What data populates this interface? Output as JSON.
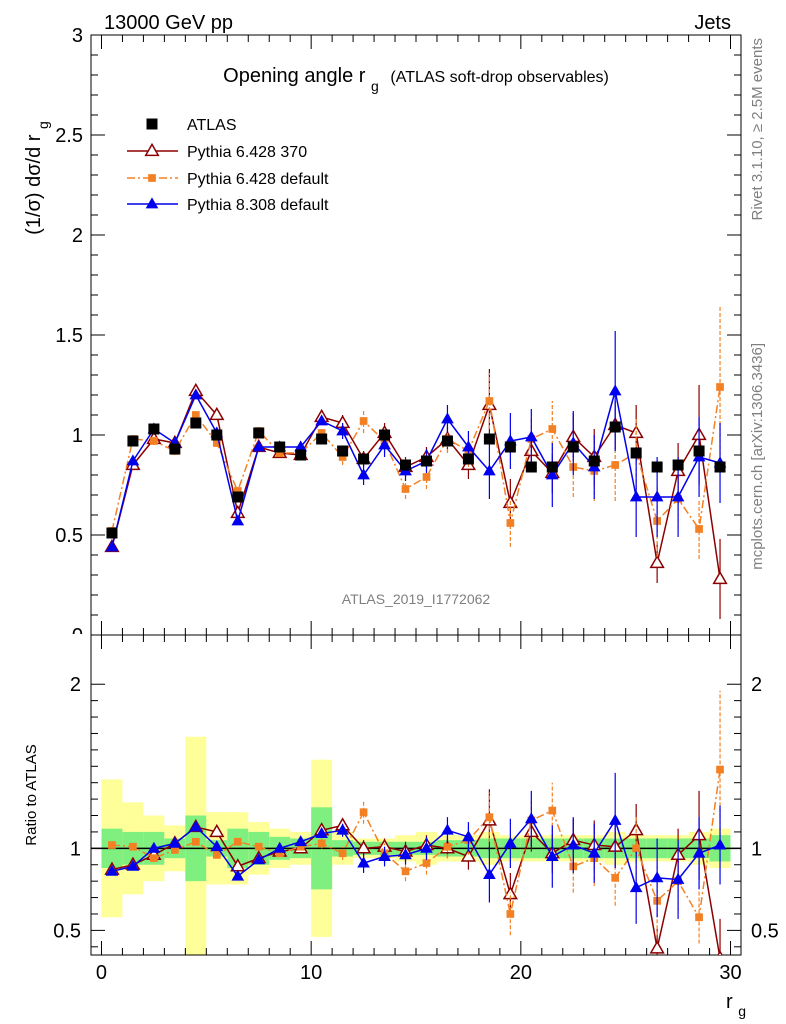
{
  "header": {
    "energy": "13000 GeV pp",
    "process": "Jets",
    "rivet_info": "Rivet 3.1.10, ≥ 2.5M events",
    "mcplots_info": "mcplots.cern.ch [arXiv:1306.3436]"
  },
  "chart_data": [
    {
      "type": "scatter",
      "panel": "main",
      "title_main": "Opening angle r",
      "title_sub": "g",
      "title_rest": "(ATLAS soft-drop observables)",
      "ylabel": "(1/σ) dσ/d r",
      "ylabel_sub": "g",
      "analysis_id": "ATLAS_2019_I1772062",
      "xlim": [
        -0.5,
        30.5
      ],
      "ylim": [
        0,
        3
      ],
      "y_ticks": [
        "0.5",
        "1",
        "1.5",
        "2",
        "2.5",
        "3"
      ],
      "y_tick_values": [
        0.5,
        1,
        1.5,
        2,
        2.5,
        3
      ],
      "x": [
        0.5,
        1.5,
        2.5,
        3.5,
        4.5,
        5.5,
        6.5,
        7.5,
        8.5,
        9.5,
        10.5,
        11.5,
        12.5,
        13.5,
        14.5,
        15.5,
        16.5,
        17.5,
        18.5,
        19.5,
        20.5,
        21.5,
        22.5,
        23.5,
        24.5,
        25.5,
        26.5,
        27.5,
        28.5,
        29.5
      ],
      "series": [
        {
          "name": "ATLAS",
          "color": "#000000",
          "marker": "filled-square",
          "values": [
            0.51,
            0.97,
            1.03,
            0.93,
            1.06,
            1.0,
            0.69,
            1.01,
            0.94,
            0.9,
            0.98,
            0.92,
            0.88,
            1.0,
            0.85,
            0.87,
            0.97,
            0.88,
            0.98,
            0.94,
            0.84,
            0.84,
            0.94,
            0.87,
            1.04,
            0.91,
            0.84,
            0.85,
            0.92,
            0.84
          ]
        },
        {
          "name": "Pythia 6.428 370",
          "color": "#8b0000",
          "marker": "open-triangle",
          "values": [
            0.44,
            0.85,
            0.98,
            0.96,
            1.22,
            1.1,
            0.61,
            0.94,
            0.91,
            0.9,
            1.09,
            1.06,
            0.88,
            1.01,
            0.84,
            0.89,
            0.98,
            0.85,
            1.15,
            0.66,
            0.92,
            0.81,
            0.99,
            0.89,
            1.05,
            1.01,
            0.36,
            0.82,
            1.0,
            0.28
          ],
          "errors": [
            0.02,
            0.02,
            0.02,
            0.02,
            0.02,
            0.02,
            0.02,
            0.02,
            0.02,
            0.02,
            0.02,
            0.04,
            0.04,
            0.05,
            0.05,
            0.05,
            0.06,
            0.07,
            0.18,
            0.12,
            0.1,
            0.1,
            0.12,
            0.14,
            0.12,
            0.14,
            0.1,
            0.14,
            0.25,
            0.2
          ]
        },
        {
          "name": "Pythia 6.428 default",
          "color": "#f48024",
          "marker": "filled-small-square",
          "values": [
            0.52,
            0.98,
            0.97,
            0.92,
            1.1,
            0.96,
            0.72,
            1.02,
            0.91,
            0.91,
            1.01,
            0.89,
            1.07,
            0.97,
            0.73,
            0.79,
            0.98,
            0.92,
            1.17,
            0.56,
            0.98,
            1.03,
            0.84,
            0.82,
            0.85,
            0.91,
            0.57,
            0.68,
            0.53,
            1.24
          ],
          "errors": [
            0.02,
            0.02,
            0.02,
            0.02,
            0.02,
            0.02,
            0.02,
            0.02,
            0.02,
            0.02,
            0.03,
            0.04,
            0.06,
            0.06,
            0.05,
            0.06,
            0.07,
            0.08,
            0.14,
            0.12,
            0.1,
            0.14,
            0.15,
            0.15,
            0.18,
            0.18,
            0.18,
            0.15,
            0.15,
            0.4
          ]
        },
        {
          "name": "Pythia 8.308 default",
          "color": "#0000ee",
          "marker": "filled-triangle",
          "values": [
            0.44,
            0.87,
            1.03,
            0.96,
            1.2,
            1.01,
            0.57,
            0.94,
            0.94,
            0.94,
            1.07,
            1.02,
            0.8,
            0.95,
            0.82,
            0.87,
            1.08,
            0.94,
            0.82,
            0.97,
            0.99,
            0.8,
            0.96,
            0.84,
            1.22,
            0.69,
            0.69,
            0.69,
            0.89,
            0.86
          ],
          "errors": [
            0.02,
            0.02,
            0.02,
            0.02,
            0.02,
            0.02,
            0.02,
            0.02,
            0.02,
            0.02,
            0.02,
            0.04,
            0.05,
            0.06,
            0.05,
            0.06,
            0.07,
            0.08,
            0.14,
            0.14,
            0.14,
            0.16,
            0.16,
            0.16,
            0.3,
            0.2,
            0.2,
            0.2,
            0.2,
            0.2
          ]
        }
      ],
      "legend_position": "top-left"
    },
    {
      "type": "scatter",
      "panel": "ratio",
      "ylabel": "Ratio to ATLAS",
      "xlabel": "r",
      "xlabel_sub": "g",
      "xlim": [
        -0.5,
        30.5
      ],
      "ylim": [
        0.35,
        2.3
      ],
      "x_ticks": [
        "0",
        "10",
        "20",
        "30"
      ],
      "x_tick_values": [
        0,
        10,
        20,
        30
      ],
      "y_ticks": [
        "0.5",
        "1",
        "2"
      ],
      "y_tick_values": [
        0.5,
        1,
        2
      ],
      "reference_line": 1,
      "band_stat_color": "#7ff07f",
      "band_total_color": "#ffff99",
      "band_stat_halfwidth": [
        0.12,
        0.1,
        0.1,
        0.06,
        0.2,
        0.05,
        0.12,
        0.1,
        0.07,
        0.06,
        0.25,
        0.05,
        0.04,
        0.04,
        0.04,
        0.04,
        0.05,
        0.05,
        0.06,
        0.06,
        0.06,
        0.06,
        0.06,
        0.06,
        0.06,
        0.06,
        0.06,
        0.06,
        0.06,
        0.08
      ],
      "band_total_halfwidth": [
        0.42,
        0.28,
        0.2,
        0.14,
        0.68,
        0.22,
        0.22,
        0.16,
        0.12,
        0.1,
        0.54,
        0.1,
        0.06,
        0.06,
        0.08,
        0.1,
        0.08,
        0.08,
        0.1,
        0.08,
        0.08,
        0.08,
        0.08,
        0.08,
        0.1,
        0.08,
        0.08,
        0.08,
        0.1,
        0.12
      ],
      "series": [
        {
          "name": "Pythia 6.428 370",
          "color": "#8b0000",
          "values": [
            0.87,
            0.9,
            0.96,
            1.03,
            1.13,
            1.1,
            0.89,
            0.94,
            0.98,
            1.0,
            1.11,
            1.14,
            1.0,
            1.01,
            0.98,
            1.02,
            1.0,
            0.95,
            1.17,
            0.72,
            1.1,
            0.97,
            1.05,
            1.02,
            1.01,
            1.11,
            0.39,
            0.96,
            1.08,
            0.33
          ],
          "errors": [
            0.02,
            0.02,
            0.02,
            0.02,
            0.02,
            0.02,
            0.02,
            0.02,
            0.02,
            0.02,
            0.02,
            0.04,
            0.05,
            0.05,
            0.06,
            0.06,
            0.06,
            0.08,
            0.19,
            0.13,
            0.12,
            0.12,
            0.13,
            0.15,
            0.13,
            0.16,
            0.12,
            0.16,
            0.27,
            0.24
          ]
        },
        {
          "name": "Pythia 6.428 default",
          "color": "#f48024",
          "values": [
            1.02,
            1.01,
            0.94,
            0.99,
            1.04,
            0.96,
            1.04,
            1.01,
            0.97,
            1.01,
            1.03,
            0.97,
            1.22,
            0.97,
            0.86,
            0.91,
            1.01,
            1.05,
            1.19,
            0.6,
            1.17,
            1.23,
            0.89,
            0.94,
            0.82,
            1.0,
            0.68,
            0.8,
            0.58,
            1.48
          ],
          "errors": [
            0.02,
            0.02,
            0.02,
            0.02,
            0.02,
            0.02,
            0.02,
            0.02,
            0.02,
            0.02,
            0.03,
            0.04,
            0.07,
            0.06,
            0.06,
            0.07,
            0.07,
            0.09,
            0.15,
            0.13,
            0.12,
            0.17,
            0.16,
            0.17,
            0.17,
            0.2,
            0.21,
            0.18,
            0.16,
            0.48
          ]
        },
        {
          "name": "Pythia 8.308 default",
          "color": "#0000ee",
          "values": [
            0.86,
            0.89,
            1.0,
            1.03,
            1.13,
            1.01,
            0.83,
            0.93,
            1.0,
            1.04,
            1.09,
            1.11,
            0.91,
            0.95,
            0.96,
            1.0,
            1.11,
            1.07,
            0.84,
            1.03,
            1.18,
            0.95,
            1.02,
            0.97,
            1.17,
            0.76,
            0.82,
            0.81,
            0.97,
            1.02
          ],
          "errors": [
            0.02,
            0.02,
            0.02,
            0.02,
            0.02,
            0.02,
            0.02,
            0.02,
            0.02,
            0.02,
            0.02,
            0.04,
            0.06,
            0.06,
            0.06,
            0.07,
            0.08,
            0.09,
            0.17,
            0.15,
            0.17,
            0.19,
            0.17,
            0.18,
            0.29,
            0.22,
            0.24,
            0.24,
            0.22,
            0.24
          ]
        }
      ]
    }
  ]
}
